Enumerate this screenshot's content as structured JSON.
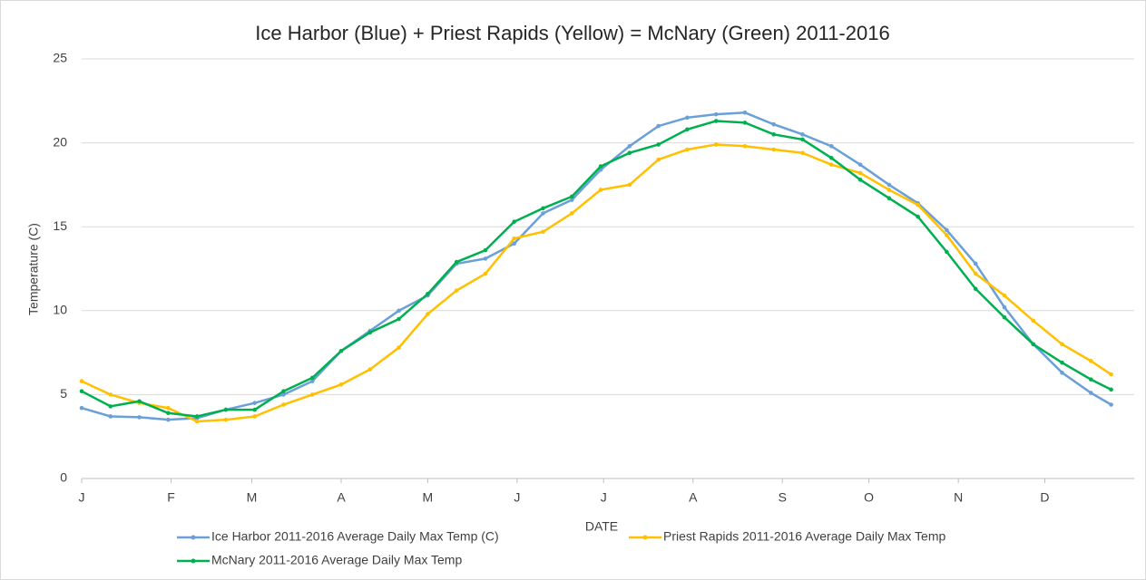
{
  "chart_data": {
    "type": "line",
    "title": "Ice Harbor (Blue) + Priest Rapids (Yellow) = McNary (Green) 2011-2016",
    "x_label": "DATE",
    "y_label": "Temperature (C)",
    "x": [
      1,
      11,
      21,
      31,
      41,
      51,
      61,
      71,
      81,
      91,
      101,
      111,
      121,
      131,
      141,
      151,
      161,
      171,
      181,
      191,
      201,
      211,
      221,
      231,
      241,
      251,
      261,
      271,
      281,
      291,
      301,
      311,
      321,
      331,
      341,
      351,
      358
    ],
    "series": [
      {
        "name": "Ice Harbor 2011-2016 Average Daily  Max Temp (C)",
        "color": "#6a9fd8",
        "values": [
          4.2,
          3.7,
          3.65,
          3.5,
          3.6,
          4.1,
          4.5,
          5.0,
          5.8,
          7.6,
          8.8,
          10.0,
          10.9,
          12.8,
          13.1,
          14.0,
          15.8,
          16.6,
          18.4,
          19.8,
          21.0,
          21.5,
          21.7,
          21.8,
          21.1,
          20.5,
          19.8,
          18.7,
          17.5,
          16.4,
          14.8,
          12.8,
          10.2,
          8.0,
          6.3,
          5.1,
          4.4
        ]
      },
      {
        "name": "Priest Rapids 2011-2016 Average Daily Max Temp",
        "color": "#ffc000",
        "values": [
          5.8,
          5.0,
          4.5,
          4.2,
          3.4,
          3.5,
          3.7,
          4.4,
          5.0,
          5.6,
          6.5,
          7.8,
          9.8,
          11.2,
          12.2,
          14.3,
          14.7,
          15.8,
          17.2,
          17.5,
          19.0,
          19.6,
          19.9,
          19.8,
          19.6,
          19.4,
          18.7,
          18.2,
          17.2,
          16.3,
          14.5,
          12.2,
          10.9,
          9.4,
          8.0,
          7.0,
          6.2
        ]
      },
      {
        "name": "McNary 2011-2016 Average Daily Max Temp",
        "color": "#00b050",
        "values": [
          5.2,
          4.3,
          4.6,
          3.9,
          3.7,
          4.1,
          4.1,
          5.2,
          6.0,
          7.6,
          8.7,
          9.5,
          11.0,
          12.9,
          13.6,
          15.3,
          16.1,
          16.8,
          18.6,
          19.4,
          19.9,
          20.8,
          21.3,
          21.2,
          20.5,
          20.2,
          19.1,
          17.8,
          16.7,
          15.6,
          13.5,
          11.3,
          9.6,
          8.0,
          6.9,
          5.9,
          5.3
        ]
      }
    ],
    "xlim": [
      1,
      366
    ],
    "xticks": [
      {
        "value": 1,
        "label": "J"
      },
      {
        "value": 32,
        "label": "F"
      },
      {
        "value": 60,
        "label": "M"
      },
      {
        "value": 91,
        "label": "A"
      },
      {
        "value": 121,
        "label": "M"
      },
      {
        "value": 152,
        "label": "J"
      },
      {
        "value": 182,
        "label": "J"
      },
      {
        "value": 213,
        "label": "A"
      },
      {
        "value": 244,
        "label": "S"
      },
      {
        "value": 274,
        "label": "O"
      },
      {
        "value": 305,
        "label": "N"
      },
      {
        "value": 335,
        "label": "D"
      }
    ],
    "ylim": [
      0,
      25
    ],
    "yticks": [
      0,
      5,
      10,
      15,
      20,
      25
    ],
    "grid": true,
    "legend": "bottom"
  }
}
